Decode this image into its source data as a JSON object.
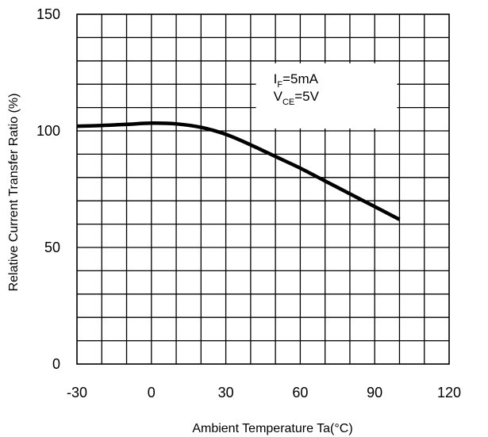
{
  "chart_data": {
    "type": "line",
    "title": "",
    "xlabel": "Ambient Temperature Ta(°C)",
    "ylabel": "Relative Current Transfer Ratio (%)",
    "xlim": [
      -30,
      120
    ],
    "ylim": [
      0,
      150
    ],
    "x_ticks": [
      "-30",
      "0",
      "30",
      "60",
      "90",
      "120"
    ],
    "y_ticks": [
      "0",
      "50",
      "100",
      "150"
    ],
    "grid": true,
    "x_minor_step": 10,
    "y_minor_step": 10,
    "annotation": {
      "line1_main": "I",
      "line1_sub": "F",
      "line1_rest": "=5mA",
      "line2_main": "V",
      "line2_sub": "CE",
      "line2_rest": "=5V"
    },
    "series": [
      {
        "x": [
          -30,
          -20,
          -10,
          0,
          10,
          20,
          30,
          40,
          50,
          60,
          70,
          80,
          90,
          100
        ],
        "y": [
          102,
          102.3,
          102.8,
          103.3,
          103,
          101.5,
          98.5,
          94,
          89,
          84,
          78.5,
          73,
          67.5,
          62
        ]
      }
    ],
    "colors": {
      "line": "#000000",
      "grid": "#000000",
      "annotation_bg": "#ffffff"
    }
  }
}
